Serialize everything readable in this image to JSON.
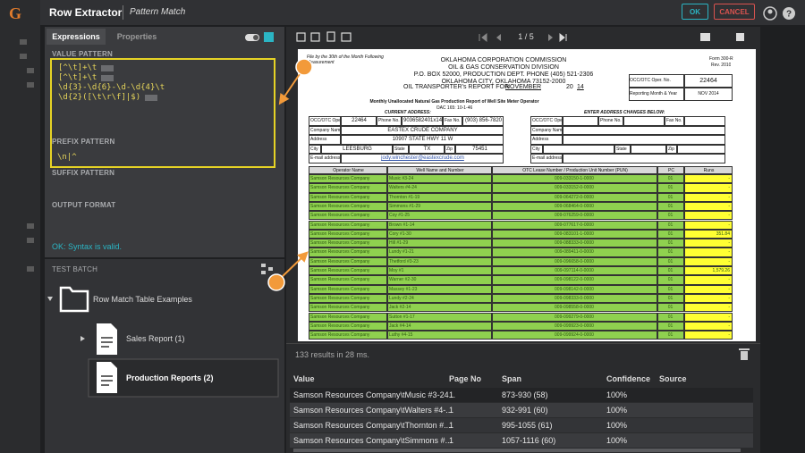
{
  "app": {
    "logo": "G"
  },
  "dialog": {
    "title": "Row Extractor",
    "subtitle": "Pattern Match",
    "ok": "OK",
    "cancel": "CANCEL"
  },
  "tabs": [
    "Expressions",
    "Properties"
  ],
  "value_pattern": {
    "label": "VALUE PATTERN",
    "lines": [
      "[^\\t]+\\t",
      "[^\\t]+\\t",
      "\\d{3}-\\d{6}-\\d-\\d{4}\\t",
      "\\d{2}([\\t\\r\\f]|$)"
    ]
  },
  "prefix_pattern": {
    "label": "PREFIX PATTERN",
    "value": "\\n|^"
  },
  "suffix_pattern": {
    "label": "SUFFIX PATTERN"
  },
  "output_format": {
    "label": "OUTPUT FORMAT"
  },
  "status": "OK: Syntax is valid.",
  "test_batch": {
    "label": "TEST BATCH",
    "folder": "Row Match Table Examples",
    "files": [
      "Sales Report (1)",
      "Production Reports (2)"
    ]
  },
  "viewer": {
    "page": "1 / 5"
  },
  "document": {
    "note": "File by the 30th of the Month Following Measurement",
    "form": "Form 300-R",
    "rev": "Rev. 2010",
    "heading": [
      "OKLAHOMA CORPORATION COMMISSION",
      "OIL & GAS CONSERVATION DIVISION",
      "P.O. BOX 52000, PRODUCTION DEPT. PHONE (405) 521-2306",
      "OKLAHOMA CITY, OKLAHOMA 73152-2000"
    ],
    "report_for": "OIL TRANSPORTER's REPORT FOR",
    "month": "NOVEMBER",
    "year_prefix": "20",
    "year": "14",
    "subheading": "Monthly Unallocated Natural Gas Production Report of Well Site Meter Operator",
    "code": "OAC 165: 10-1-46",
    "oper_box": [
      [
        "OCC/OTC Oper. No.",
        "22464"
      ],
      [
        "Reporting Month & Year",
        "NOV 2014"
      ]
    ],
    "current_address": "CURRENT ADDRESS:",
    "address_changes": "ENTER ADDRESS CHANGES BELOW:",
    "address": {
      "labels": [
        "OCC/OTC Oper. No.",
        "Phone No.",
        "Fax No.",
        "Company Name",
        "Address",
        "City",
        "State",
        "Zip",
        "E-mail address"
      ],
      "oper": "22464",
      "phone": "9036582401x147",
      "fax": "(903) 856-7820",
      "company": "EASTEX CRUDE COMPANY",
      "street": "10907 STATE HWY 11 W",
      "city": "LEESBURG",
      "state": "TX",
      "zip": "75451",
      "email": "jody.winchester@eastexcrude.com"
    },
    "table": {
      "columns": [
        "Operator Name",
        "Well Name and Number",
        "OTC Lease Number / Production Unit Number (PUN)",
        "PC",
        "Runs"
      ],
      "rows": [
        [
          "Samson Resources Company",
          "Music #3-24",
          "009-033150-1-0000",
          "01",
          "-"
        ],
        [
          "Samson Resources Company",
          "Walters #4-24",
          "009-033152-0-0000",
          "01",
          "-"
        ],
        [
          "Samson Resources Company",
          "Thornton #1-19",
          "009-064272-0-0000",
          "01",
          "-"
        ],
        [
          "Samson Resources Company",
          "Simmons #1-29",
          "009-068464-0-0000",
          "01",
          "-"
        ],
        [
          "Samson Resources Company",
          "Coy #1-25",
          "009-076259-0-0000",
          "01",
          "-"
        ],
        [
          "Samson Resources Company",
          "Brown #1-14",
          "009-077617-0-0000",
          "01",
          "-"
        ],
        [
          "Samson Resources Company",
          "Cory #1-30",
          "009-083101-1-0000",
          "01",
          "351.84"
        ],
        [
          "Samson Resources Company",
          "Hill #1-29",
          "009-088333-0-0000",
          "01",
          "-"
        ],
        [
          "Samson Resources Company",
          "Lundy #1-21",
          "009-089411-0-0000",
          "01",
          "-"
        ],
        [
          "Samson Resources Company",
          "Thetford #3-23",
          "009-096658-0-0000",
          "01",
          "-"
        ],
        [
          "Samson Resources Company",
          "Moy #1",
          "009-097114-0-0000",
          "01",
          "1,579.26"
        ],
        [
          "Samson Resources Company",
          "Warner #2-30",
          "009-098122-0-0000",
          "01",
          "-"
        ],
        [
          "Samson Resources Company",
          "Massey #1-23",
          "009-098142-0-0000",
          "01",
          "-"
        ],
        [
          "Samson Resources Company",
          "Lundy #2-24",
          "009-098333-0-0000",
          "01",
          "-"
        ],
        [
          "Samson Resources Company",
          "Jack #2-14",
          "009-098558-0-0000",
          "01",
          "-"
        ],
        [
          "Samson Resources Company",
          "Sutton #1-17",
          "009-099279-0-0000",
          "01",
          "-"
        ],
        [
          "Samson Resources Company",
          "Jack #4-14",
          "009-099923-0-0000",
          "01",
          "-"
        ],
        [
          "Samson Resources Company",
          "Luthy #4-15",
          "009-099924-0-0000",
          "01",
          "-"
        ]
      ]
    }
  },
  "results": {
    "summary": "133 results in 28 ms.",
    "columns": [
      "Value",
      "Page No",
      "Span",
      "Confidence",
      "Source"
    ],
    "rows": [
      [
        "Samson Resources Company\\tMusic #3-24...",
        "1",
        "873-930 (58)",
        "100%"
      ],
      [
        "Samson Resources Company\\tWalters #4-...",
        "1",
        "932-991 (60)",
        "100%"
      ],
      [
        "Samson Resources Company\\tThornton #...",
        "1",
        "995-1055 (61)",
        "100%"
      ],
      [
        "Samson Resources Company\\tSimmons #...",
        "1",
        "1057-1116 (60)",
        "100%"
      ]
    ]
  }
}
